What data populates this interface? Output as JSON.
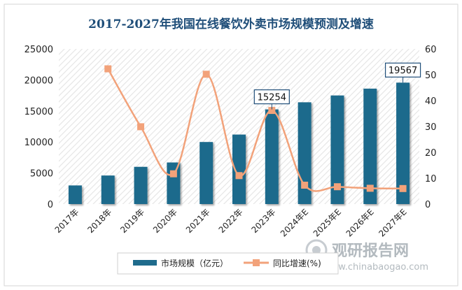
{
  "chart_data": {
    "type": "bar",
    "title": "2017-2027年我国在线餐饮外卖市场规模预测及增速",
    "categories": [
      "2017年",
      "2018年",
      "2019年",
      "2020年",
      "2021年",
      "2022年",
      "2023年",
      "2024年E",
      "2025年E",
      "2026年E",
      "2027年E"
    ],
    "series": [
      {
        "name": "市场规模（亿元）",
        "kind": "bar",
        "axis": "left",
        "color": "#1f6b8c",
        "values": [
          3000,
          4600,
          6000,
          6700,
          10000,
          11200,
          15254,
          16400,
          17500,
          18600,
          19567
        ]
      },
      {
        "name": "同比增速(%)",
        "kind": "line",
        "axis": "right",
        "color": "#f2a27a",
        "values": [
          null,
          52.3,
          29.9,
          11.7,
          50.2,
          11.0,
          36.2,
          7.3,
          6.7,
          6.1,
          6.0
        ]
      }
    ],
    "y_left": {
      "min": 0,
      "max": 25000,
      "ticks": [
        0,
        5000,
        10000,
        15000,
        20000,
        25000
      ]
    },
    "y_right": {
      "min": 0,
      "max": 60,
      "ticks": [
        0,
        10,
        20,
        30,
        40,
        50,
        60
      ]
    },
    "callouts": [
      {
        "category": "2023年",
        "label": "15254"
      },
      {
        "category": "2027年E",
        "label": "19567"
      }
    ],
    "legend_placement": "bottom-center",
    "grid": false
  },
  "watermark": {
    "text_cn": "观研报告网",
    "text_en": "www.chinabaogao.com"
  },
  "colors": {
    "title": "#1f4e79",
    "bar": "#1f6b8c",
    "line": "#f2a27a",
    "callout_border": "#1f4e79"
  }
}
